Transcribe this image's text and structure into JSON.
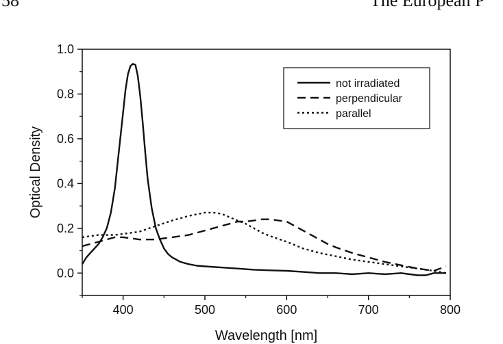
{
  "header": {
    "left_fragment": "58",
    "right_fragment": "The European P"
  },
  "chart_data": {
    "type": "line",
    "xlabel": "Wavelength [nm]",
    "ylabel": "Optical Density",
    "xlim": [
      350,
      800
    ],
    "ylim": [
      -0.1,
      1.0
    ],
    "x_ticks": [
      400,
      500,
      600,
      700,
      800
    ],
    "y_ticks": [
      0.0,
      0.2,
      0.4,
      0.6,
      0.8,
      1.0
    ],
    "x_tick_labels": [
      "400",
      "500",
      "600",
      "700",
      "800"
    ],
    "y_tick_labels": [
      "0.0",
      "0.2",
      "0.4",
      "0.6",
      "0.8",
      "1.0"
    ],
    "grid": false,
    "legend_position": "top-right",
    "series": [
      {
        "name": "not irradiated",
        "style": "solid",
        "x": [
          350,
          355,
          360,
          365,
          370,
          375,
          380,
          385,
          390,
          395,
          400,
          403,
          406,
          409,
          412,
          415,
          418,
          421,
          424,
          427,
          430,
          435,
          440,
          445,
          450,
          455,
          460,
          465,
          470,
          480,
          490,
          500,
          520,
          540,
          560,
          580,
          600,
          620,
          640,
          660,
          680,
          700,
          720,
          740,
          760,
          770,
          780,
          790,
          795
        ],
        "y": [
          0.04,
          0.07,
          0.09,
          0.11,
          0.13,
          0.16,
          0.2,
          0.27,
          0.38,
          0.55,
          0.72,
          0.82,
          0.89,
          0.925,
          0.935,
          0.93,
          0.88,
          0.79,
          0.67,
          0.54,
          0.42,
          0.29,
          0.2,
          0.15,
          0.11,
          0.085,
          0.07,
          0.06,
          0.05,
          0.04,
          0.033,
          0.03,
          0.025,
          0.02,
          0.015,
          0.012,
          0.01,
          0.005,
          0.0,
          0.0,
          -0.005,
          0.0,
          -0.005,
          0.0,
          -0.01,
          -0.01,
          0.0,
          0.0,
          0.0
        ]
      },
      {
        "name": "perpendicular",
        "style": "dashed",
        "x": [
          350,
          360,
          370,
          380,
          390,
          400,
          410,
          420,
          430,
          440,
          450,
          460,
          470,
          480,
          490,
          500,
          510,
          520,
          530,
          540,
          550,
          560,
          570,
          580,
          590,
          600,
          610,
          620,
          630,
          640,
          650,
          660,
          680,
          700,
          720,
          740,
          760,
          780,
          795
        ],
        "y": [
          0.12,
          0.13,
          0.14,
          0.15,
          0.16,
          0.16,
          0.155,
          0.15,
          0.15,
          0.15,
          0.155,
          0.16,
          0.165,
          0.17,
          0.18,
          0.19,
          0.2,
          0.21,
          0.22,
          0.23,
          0.23,
          0.235,
          0.24,
          0.24,
          0.235,
          0.23,
          0.21,
          0.19,
          0.17,
          0.15,
          0.13,
          0.115,
          0.09,
          0.07,
          0.05,
          0.035,
          0.02,
          0.01,
          0.03
        ]
      },
      {
        "name": "parallel",
        "style": "dotted",
        "x": [
          350,
          360,
          370,
          380,
          390,
          400,
          420,
          440,
          460,
          480,
          500,
          510,
          520,
          530,
          540,
          550,
          560,
          570,
          580,
          600,
          620,
          640,
          660,
          680,
          700,
          720,
          740,
          760,
          780,
          795
        ],
        "y": [
          0.16,
          0.165,
          0.17,
          0.17,
          0.17,
          0.175,
          0.185,
          0.21,
          0.235,
          0.255,
          0.27,
          0.27,
          0.265,
          0.25,
          0.235,
          0.22,
          0.2,
          0.18,
          0.165,
          0.14,
          0.11,
          0.09,
          0.075,
          0.06,
          0.05,
          0.04,
          0.03,
          0.02,
          0.01,
          0.0
        ]
      }
    ]
  },
  "colors": {
    "line": "#111111",
    "background": "#ffffff"
  }
}
